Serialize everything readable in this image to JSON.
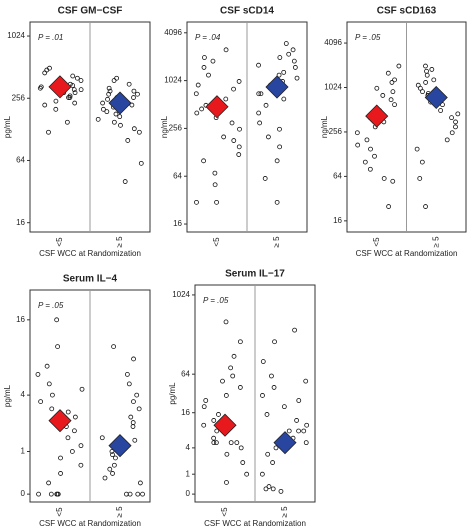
{
  "chart_data": [
    {
      "type": "strip",
      "title": "CSF GM−CSF",
      "ylabel": "pg/mL",
      "annotation": "P = .01",
      "xlabel": "CSF WCC at Randomization",
      "categories": [
        "<5",
        "≥ 5"
      ],
      "yscale": "log",
      "ylim": [
        13,
        1400
      ],
      "yticks": [
        16,
        64,
        256,
        1024
      ],
      "values": [
        [
          380,
          300,
          420,
          260,
          350,
          310,
          290,
          450,
          500,
          280,
          240,
          330,
          370,
          200,
          270,
          310,
          260,
          230,
          150,
          400,
          340,
          290,
          480,
          320,
          220,
          120
        ],
        [
          380,
          300,
          250,
          200,
          180,
          150,
          280,
          320,
          220,
          140,
          260,
          300,
          350,
          120,
          100,
          190,
          230,
          170,
          210,
          260,
          400,
          160,
          130,
          60,
          40,
          280
        ]
      ],
      "means": [
        330,
        230
      ],
      "mean_colors": [
        "#e8191c",
        "#2845a0"
      ]
    },
    {
      "type": "strip",
      "title": "CSF sCD14",
      "ylabel": "ng/mL",
      "annotation": "P = .04",
      "categories": [
        "<5",
        "≥ 5"
      ],
      "yscale": "log",
      "ylim": [
        12.7,
        5600
      ],
      "yticks": [
        16,
        64,
        256,
        1024,
        4096
      ],
      "values": [
        [
          2000,
          1500,
          900,
          700,
          500,
          400,
          1200,
          300,
          250,
          200,
          150,
          600,
          800,
          1000,
          100,
          70,
          50,
          30,
          30,
          350,
          450,
          1800,
          2500,
          180,
          120
        ],
        [
          2500,
          3000,
          2000,
          1500,
          1200,
          1000,
          800,
          600,
          1600,
          900,
          700,
          500,
          400,
          300,
          200,
          150,
          100,
          2200,
          1800,
          1300,
          30,
          1100,
          250,
          700,
          60
        ]
      ],
      "means": [
        480,
        850
      ],
      "mean_colors": [
        "#e8191c",
        "#2845a0"
      ]
    },
    {
      "type": "strip",
      "title": "CSF sCD163",
      "ylabel": "ng/mL",
      "annotation": "P = .05",
      "xlabel": "CSF WCC at Randomization",
      "categories": [
        "<5",
        "≥ 5"
      ],
      "yscale": "log",
      "ylim": [
        11.3,
        7900
      ],
      "yticks": [
        16,
        64,
        256,
        1024,
        4096
      ],
      "values": [
        [
          2000,
          1600,
          1300,
          1000,
          800,
          600,
          500,
          400,
          300,
          250,
          200,
          150,
          120,
          100,
          80,
          60,
          55,
          25,
          700,
          900,
          1200,
          350,
          170,
          450
        ],
        [
          2000,
          1800,
          1500,
          1300,
          1100,
          1000,
          900,
          800,
          700,
          600,
          500,
          400,
          300,
          250,
          200,
          150,
          100,
          60,
          25,
          1700,
          1200,
          850,
          650,
          450,
          350
        ]
      ],
      "means": [
        420,
        750
      ],
      "mean_colors": [
        "#e8191c",
        "#2845a0"
      ]
    },
    {
      "type": "strip",
      "title": "Serum IL−4",
      "ylabel": "pg/mL",
      "annotation": "P = .05",
      "xlabel": "CSF WCC at Randomization",
      "categories": [
        "<5",
        "≥ 5"
      ],
      "yscale": "log1p",
      "ylim": [
        -0.12,
        26.6
      ],
      "yticks": [
        0,
        1,
        4,
        16
      ],
      "values": [
        [
          16,
          10,
          7,
          5,
          4,
          3.5,
          3,
          2.5,
          2,
          1.5,
          1.2,
          1,
          0.8,
          0.6,
          0.4,
          0.2,
          0,
          0,
          0,
          0,
          0,
          6,
          4.5,
          2.8,
          1.8
        ],
        [
          10,
          8,
          6,
          5,
          4,
          3,
          2.5,
          2,
          1.5,
          1.2,
          1,
          0.8,
          0.6,
          0.4,
          0.3,
          0.2,
          0,
          0,
          0,
          0,
          3.5,
          2.2,
          1.4,
          0.9,
          0.5
        ]
      ],
      "means": [
        2.3,
        1.2
      ],
      "mean_colors": [
        "#e8191c",
        "#2845a0"
      ]
    },
    {
      "type": "strip",
      "title": "Serum IL−17",
      "ylabel": "pg/mL",
      "annotation": "P = .05",
      "xlabel": "CSF WCC at Randomization",
      "categories": [
        "<5",
        "≥ 5"
      ],
      "yscale": "log1p",
      "ylim": [
        -0.24,
        1447
      ],
      "yticks": [
        0,
        1,
        4,
        16,
        64,
        1024
      ],
      "values": [
        [
          400,
          200,
          120,
          80,
          60,
          40,
          30,
          20,
          15,
          12,
          10,
          8,
          6,
          5,
          5,
          5,
          5,
          4,
          3,
          2,
          1,
          0.5,
          25,
          50
        ],
        [
          300,
          200,
          100,
          60,
          40,
          30,
          20,
          15,
          12,
          10,
          8,
          8,
          8,
          6,
          5,
          4,
          3,
          2,
          1,
          0.3,
          0.2,
          0.2,
          0.1,
          50,
          25
        ]
      ],
      "means": [
        10,
        5
      ],
      "mean_colors": [
        "#e8191c",
        "#2845a0"
      ]
    }
  ]
}
